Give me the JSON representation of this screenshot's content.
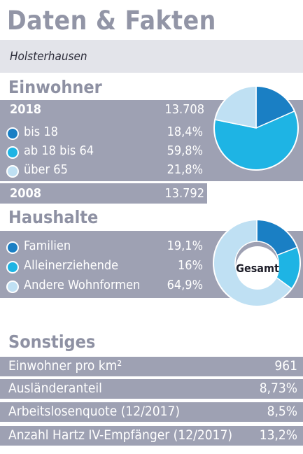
{
  "title": "Daten & Fakten",
  "subtitle": "Holsterhausen",
  "colors": {
    "dark_blue": "#1a7fc4",
    "mid_blue": "#1eb4e4",
    "light_blue": "#bfe0f3",
    "band": "#9ea1b3",
    "heading": "#8e91a3"
  },
  "einwohner": {
    "heading": "Einwohner",
    "year_current": {
      "year": "2018",
      "value": "13.708"
    },
    "items": [
      {
        "label": "bis 18",
        "value": "18,4%",
        "share": 18.4
      },
      {
        "label": "ab 18 bis 64",
        "value": "59,8%",
        "share": 59.8
      },
      {
        "label": "über 65",
        "value": "21,8%",
        "share": 21.8
      }
    ],
    "year_previous": {
      "year": "2008",
      "value": "13.792"
    }
  },
  "haushalte": {
    "heading": "Haushalte",
    "center_label": "Gesamt",
    "items": [
      {
        "label": "Familien",
        "value": "19,1%",
        "share": 19.1
      },
      {
        "label": "Alleinerziehende",
        "value": "16%",
        "share": 16
      },
      {
        "label": "Andere Wohnformen",
        "value": "64,9%",
        "share": 64.9
      }
    ]
  },
  "sonstiges": {
    "heading": "Sonstiges",
    "rows": [
      {
        "label": "Einwohner pro km²",
        "value": "961"
      },
      {
        "label": "Ausländeranteil",
        "value": "8,73%"
      },
      {
        "label": "Arbeitslosenquote (12/2017)",
        "value": "8,5%"
      },
      {
        "label": "Anzahl Hartz IV-Empfänger (12/2017)",
        "value": "13,2%"
      }
    ]
  }
}
